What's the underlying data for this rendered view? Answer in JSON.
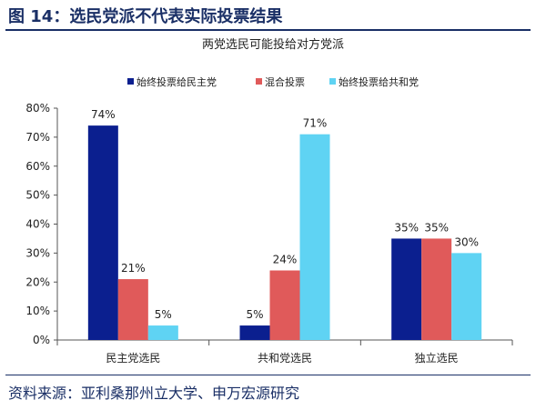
{
  "figure": {
    "title": "图 14：选民党派不代表实际投票结果",
    "source": "资料来源：亚利桑那州立大学、申万宏源研究"
  },
  "chart_data": {
    "type": "bar",
    "title": "两党选民可能投给对方党派",
    "categories": [
      "民主党选民",
      "共和党选民",
      "独立选民"
    ],
    "series": [
      {
        "name": "始终投票给民主党",
        "color": "#0b1f8f",
        "values": [
          74,
          5,
          35
        ]
      },
      {
        "name": "混合投票",
        "color": "#e05a5a",
        "values": [
          21,
          24,
          35
        ]
      },
      {
        "name": "始终投票给共和党",
        "color": "#5fd3f3",
        "values": [
          5,
          71,
          30
        ]
      }
    ],
    "ylim": [
      0,
      80
    ],
    "yticks": [
      "0%",
      "10%",
      "20%",
      "30%",
      "40%",
      "50%",
      "60%",
      "70%",
      "80%"
    ],
    "value_suffix": "%",
    "legend_position": "top",
    "grid": false
  }
}
